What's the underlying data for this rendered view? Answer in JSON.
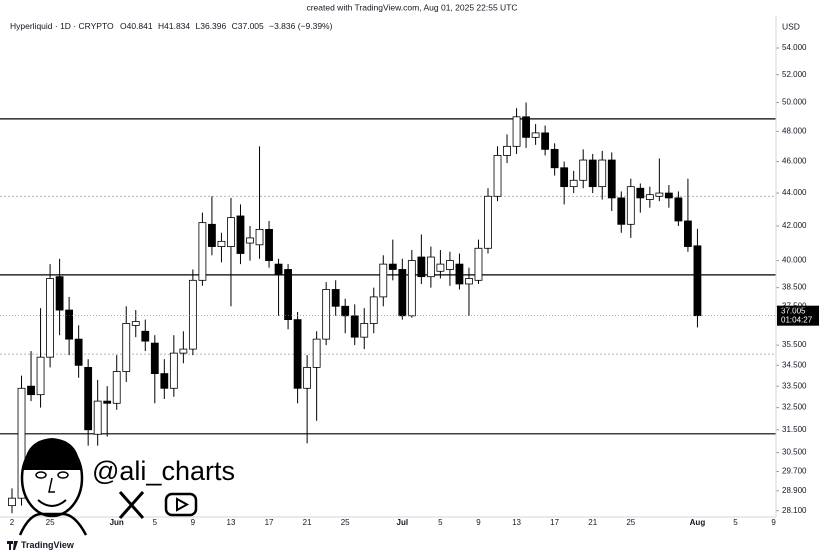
{
  "created": "created with TradingView.com, Aug 01, 2025 22:55 UTC",
  "footer": "TradingView",
  "watermark": {
    "handle": "@ali_charts"
  },
  "chart_data": {
    "type": "candlestick",
    "header": {
      "symbol": "Hyperliquid · 1D · CRYPTO",
      "open": "O40.841",
      "high": "H41.834",
      "low": "L36.396",
      "close": "C37.005",
      "change": "−3.836 (−9.39%)"
    },
    "currency": "USD",
    "countdown": "01:04:27",
    "categories": [
      "2",
      null,
      null,
      null,
      "25",
      null,
      null,
      null,
      null,
      null,
      null,
      "Jun",
      null,
      null,
      null,
      "5",
      null,
      null,
      null,
      "9",
      null,
      null,
      null,
      "13",
      null,
      null,
      null,
      "17",
      null,
      null,
      null,
      "21",
      null,
      null,
      null,
      "25",
      null,
      null,
      null,
      null,
      null,
      "Jul",
      null,
      null,
      null,
      "5",
      null,
      null,
      null,
      "9",
      null,
      null,
      null,
      "13",
      null,
      null,
      null,
      "17",
      null,
      null,
      null,
      "21",
      null,
      null,
      null,
      "25",
      null,
      null,
      null,
      null,
      null,
      null,
      "Aug",
      null,
      null,
      null,
      "5",
      null,
      null,
      null,
      "9"
    ],
    "open": [
      28.3,
      28.6,
      33.5,
      33.1,
      34.9,
      39.1,
      37.3,
      35.8,
      34.4,
      31.3,
      32.8,
      32.7,
      34.2,
      36.5,
      36.2,
      35.6,
      34.1,
      33.4,
      35.1,
      35.3,
      38.9,
      42.1,
      40.8,
      40.8,
      42.6,
      41.0,
      40.9,
      41.8,
      39.8,
      39.5,
      36.8,
      33.4,
      34.4,
      35.8,
      38.4,
      37.5,
      37.0,
      35.9,
      36.6,
      38.0,
      39.8,
      39.5,
      37.0,
      40.2,
      39.1,
      39.4,
      39.5,
      39.8,
      38.7,
      38.9,
      40.7,
      43.8,
      46.4,
      47.0,
      49.0,
      47.6,
      47.9,
      46.8,
      45.6,
      44.4,
      44.8,
      46.1,
      44.4,
      46.1,
      43.7,
      42.1,
      44.3,
      43.6,
      43.8,
      44.0,
      43.7,
      42.3,
      40.841,
      null,
      null,
      null,
      null,
      null,
      null,
      null,
      null
    ],
    "high": [
      29.0,
      34.0,
      35.2,
      37.4,
      39.8,
      40.1,
      38.0,
      36.5,
      34.8,
      33.8,
      33.5,
      35.0,
      37.5,
      37.3,
      36.8,
      36.0,
      34.8,
      36.0,
      36.2,
      39.5,
      42.8,
      43.8,
      41.6,
      43.7,
      43.3,
      42.0,
      47.0,
      42.3,
      40.1,
      39.8,
      37.2,
      35.0,
      36.2,
      38.8,
      38.9,
      37.9,
      37.6,
      37.4,
      38.5,
      40.3,
      41.2,
      40.1,
      40.6,
      41.5,
      40.8,
      40.6,
      40.5,
      40.4,
      39.6,
      41.2,
      44.3,
      47.0,
      47.8,
      49.6,
      50.0,
      48.5,
      48.4,
      47.2,
      46.0,
      45.4,
      46.8,
      46.5,
      46.7,
      46.6,
      44.1,
      44.9,
      44.6,
      44.4,
      46.2,
      44.5,
      44.1,
      44.9,
      41.834,
      null,
      null,
      null,
      null,
      null,
      null,
      null,
      null
    ],
    "low": [
      28.0,
      28.3,
      32.8,
      32.5,
      34.4,
      36.0,
      35.0,
      33.9,
      30.8,
      30.8,
      31.2,
      32.4,
      33.7,
      35.9,
      35.2,
      32.7,
      32.9,
      33.0,
      34.6,
      35.0,
      38.6,
      40.3,
      39.9,
      37.5,
      39.8,
      40.0,
      40.1,
      39.6,
      37.0,
      36.3,
      32.7,
      30.9,
      31.9,
      35.5,
      37.0,
      36.1,
      35.5,
      35.3,
      36.1,
      37.5,
      38.9,
      36.8,
      36.9,
      38.7,
      38.5,
      39.0,
      38.6,
      38.4,
      37.0,
      38.7,
      40.4,
      43.5,
      45.9,
      46.5,
      46.9,
      47.1,
      46.4,
      45.1,
      43.3,
      44.0,
      44.3,
      44.0,
      43.6,
      42.9,
      41.6,
      41.3,
      42.8,
      43.1,
      43.5,
      43.1,
      42.0,
      40.5,
      36.396,
      null,
      null,
      null,
      null,
      null,
      null,
      null,
      null
    ],
    "close": [
      28.6,
      33.4,
      33.1,
      34.9,
      39.0,
      37.3,
      35.8,
      34.5,
      31.5,
      32.8,
      32.7,
      34.2,
      36.6,
      36.7,
      35.7,
      34.1,
      33.4,
      35.1,
      35.3,
      38.9,
      42.2,
      40.8,
      41.1,
      42.5,
      40.4,
      41.3,
      41.8,
      40.0,
      39.2,
      36.8,
      33.4,
      34.4,
      35.8,
      38.4,
      37.5,
      37.0,
      35.9,
      36.6,
      38.0,
      39.8,
      39.5,
      37.0,
      40.0,
      39.1,
      40.2,
      39.8,
      40.0,
      38.7,
      39.0,
      40.7,
      43.8,
      46.4,
      47.0,
      49.0,
      47.6,
      47.9,
      46.8,
      45.6,
      44.4,
      44.8,
      46.1,
      44.4,
      46.1,
      43.7,
      42.1,
      44.4,
      43.7,
      43.9,
      44.0,
      43.7,
      42.3,
      40.8,
      37.005,
      null,
      null,
      null,
      null,
      null,
      null,
      null,
      null
    ],
    "up_color": "#ffffff",
    "down_color": "#000000",
    "levels": [
      {
        "value": 48.86,
        "style": "solid"
      },
      {
        "value": 43.8,
        "style": "dotted"
      },
      {
        "value": 39.2,
        "style": "solid"
      },
      {
        "value": 35.05,
        "style": "dotted"
      },
      {
        "value": 31.32,
        "style": "solid"
      }
    ],
    "log_scale": true,
    "ylim": [
      27.85,
      55.39
    ],
    "yticks": [
      {
        "value": 54,
        "label": "54.000"
      },
      {
        "value": 52,
        "label": "52.000"
      },
      {
        "value": 50,
        "label": "50.000"
      },
      {
        "value": 48,
        "label": "48.000"
      },
      {
        "value": 46,
        "label": "46.000"
      },
      {
        "value": 44,
        "label": "44.000"
      },
      {
        "value": 42,
        "label": "42.000"
      },
      {
        "value": 40,
        "label": "40.000"
      },
      {
        "value": 38.5,
        "label": "38.500"
      },
      {
        "value": 37.5,
        "label": "37.500"
      },
      {
        "value": 35.5,
        "label": "35.500"
      },
      {
        "value": 34.5,
        "label": "34.500"
      },
      {
        "value": 33.5,
        "label": "33.500"
      },
      {
        "value": 32.5,
        "label": "32.500"
      },
      {
        "value": 31.5,
        "label": "31.500"
      },
      {
        "value": 30.5,
        "label": "30.500"
      },
      {
        "value": 29.7,
        "label": "29.700"
      },
      {
        "value": 28.9,
        "label": "28.900"
      },
      {
        "value": 28.1,
        "label": "28.100"
      }
    ]
  }
}
